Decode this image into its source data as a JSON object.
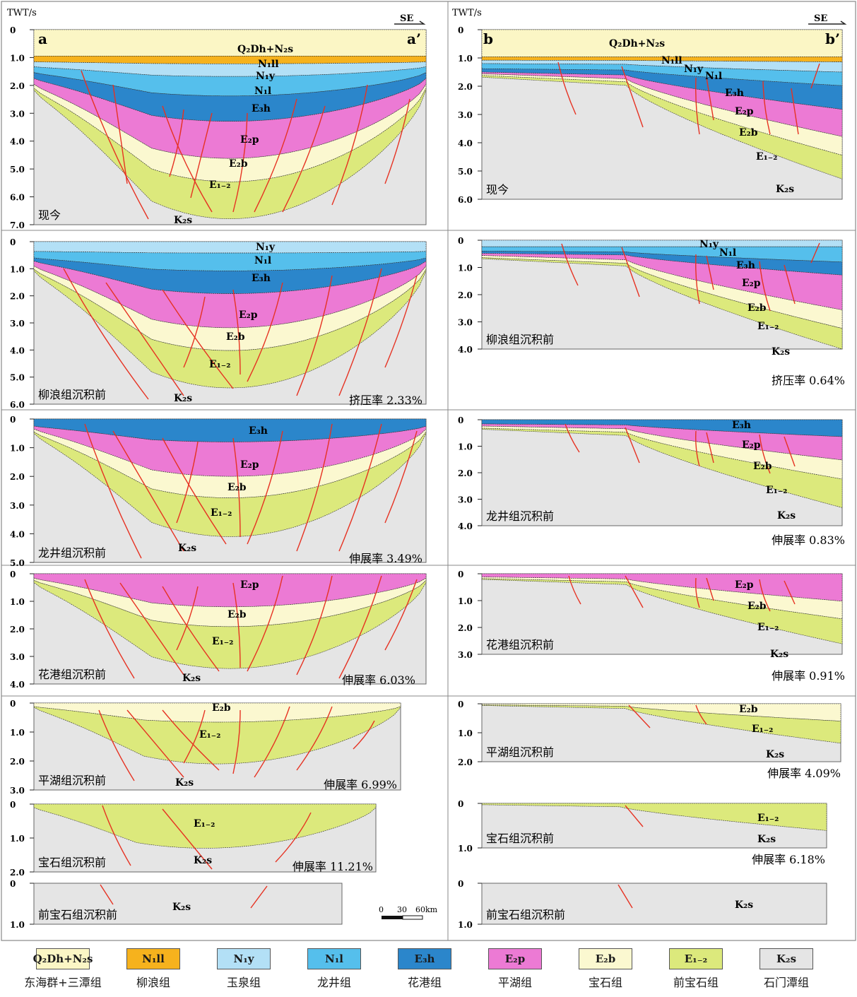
{
  "colors": {
    "Q2Dh_N2s": "#fbf6c5",
    "N1ll": "#f6b21d",
    "N1y": "#b3e0f6",
    "N1l": "#55bfec",
    "E3h": "#2b86cb",
    "E2p": "#ec7ad4",
    "E2b": "#fbf8d0",
    "E1_2": "#dce97c",
    "K2s": "#e5e5e5",
    "fault": "#e63222",
    "horizon": "#333333"
  },
  "axis_unit": "TWT/s",
  "direction": "SE",
  "sections": {
    "a": {
      "start": "a",
      "end": "a’"
    },
    "b": {
      "start": "b",
      "end": "b’"
    }
  },
  "stages": [
    {
      "name": "现今",
      "a_rate": "",
      "b_rate": ""
    },
    {
      "name": "柳浪组沉积前",
      "a_rate": "挤压率 2.33%",
      "b_rate": "挤压率 0.64%"
    },
    {
      "name": "龙井组沉积前",
      "a_rate": "伸展率 3.49%",
      "b_rate": "伸展率 0.83%"
    },
    {
      "name": "花港组沉积前",
      "a_rate": "伸展率 6.03%",
      "b_rate": "伸展率 0.91%"
    },
    {
      "name": "平湖组沉积前",
      "a_rate": "伸展率 6.99%",
      "b_rate": "伸展率 4.09%"
    },
    {
      "name": "宝石组沉积前",
      "a_rate": "伸展率 11.21%",
      "b_rate": "伸展率 6.18%"
    },
    {
      "name": "前宝石组沉积前",
      "a_rate": "",
      "b_rate": ""
    }
  ],
  "scale_bar": {
    "ticks": [
      "0",
      "30",
      "60km"
    ]
  },
  "legend": [
    {
      "code": "Q₂Dh+N₂s",
      "name": "东海群+三潭组",
      "color": "#fbf6c5"
    },
    {
      "code": "N₁ll",
      "name": "柳浪组",
      "color": "#f6b21d"
    },
    {
      "code": "N₁y",
      "name": "玉泉组",
      "color": "#b3e0f6"
    },
    {
      "code": "N₁l",
      "name": "龙井组",
      "color": "#55bfec"
    },
    {
      "code": "E₃h",
      "name": "花港组",
      "color": "#2b86cb"
    },
    {
      "code": "E₂p",
      "name": "平湖组",
      "color": "#ec7ad4"
    },
    {
      "code": "E₂b",
      "name": "宝石组",
      "color": "#fbf8d0"
    },
    {
      "code": "E₁₋₂",
      "name": "前宝石组",
      "color": "#dce97c"
    },
    {
      "code": "K₂s",
      "name": "石门潭组",
      "color": "#e5e5e5"
    }
  ],
  "layer_labels": {
    "Q2Dh_N2s": "Q₂Dh+N₂s",
    "N1ll": "N₁ll",
    "N1y": "N₁y",
    "N1l": "N₁l",
    "E3h": "E₃h",
    "E2p": "E₂p",
    "E2b": "E₂b",
    "E1_2": "E₁₋₂",
    "K2s": "K₂s"
  }
}
